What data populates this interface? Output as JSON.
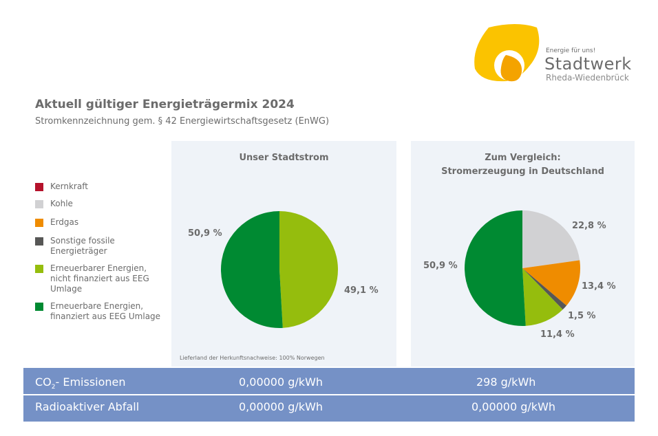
{
  "logo": {
    "tagline": "Energie für uns!",
    "name": "Stadtwerk",
    "city": "Rheda-Wiedenbrück"
  },
  "title": "Aktuell gültiger Energieträgermix 2024",
  "subtitle": "Stromkennzeichnung gem. § 42 Energiewirtschaftsgesetz (EnWG)",
  "legend": [
    {
      "label": "Kernkraft",
      "color": "#b5122b"
    },
    {
      "label": "Kohle",
      "color": "#d1d1d3"
    },
    {
      "label": "Erdgas",
      "color": "#ef8c00"
    },
    {
      "label": "Sonstige fossile Energieträger",
      "color": "#575756"
    },
    {
      "label": "Erneuerbarer Energien, nicht finanziert aus EEG Umlage",
      "color": "#95bd0d"
    },
    {
      "label": "Erneuerbare Energien, finanziert aus EEG Umlage",
      "color": "#008a32"
    }
  ],
  "chart_data": [
    {
      "type": "pie",
      "title": "Unser Stadtstrom",
      "categories": [
        "Erneuerbarer Energien, nicht finanziert aus EEG Umlage",
        "Erneuerbare Energien, finanziert aus EEG Umlage"
      ],
      "values": [
        49.1,
        50.9
      ],
      "labels": [
        "49,1 %",
        "50,9 %"
      ],
      "colors": [
        "#95bd0d",
        "#008a32"
      ],
      "note": "Lieferland der Herkunftsnachweise: 100% Norwegen"
    },
    {
      "type": "pie",
      "title": "Zum Vergleich: Stromerzeugung in Deutschland",
      "categories": [
        "Kohle",
        "Erdgas",
        "Sonstige fossile Energieträger",
        "Erneuerbarer Energien, nicht finanziert aus EEG Umlage",
        "Erneuerbare Energien, finanziert aus EEG Umlage"
      ],
      "values": [
        22.8,
        13.4,
        1.5,
        11.4,
        50.9
      ],
      "labels": [
        "22,8 %",
        "13,4 %",
        "1,5 %",
        "11,4 %",
        "50,9 %"
      ],
      "colors": [
        "#d1d1d3",
        "#ef8c00",
        "#575756",
        "#95bd0d",
        "#008a32"
      ]
    }
  ],
  "panel2_title_lines": [
    "Zum Vergleich:",
    "Stromerzeugung in Deutschland"
  ],
  "table": {
    "co2": {
      "label": "CO",
      "sub": "2",
      "suffix": "- Emissionen",
      "ours": "0,00000 g/kWh",
      "de": "298 g/kWh"
    },
    "waste": {
      "label": "Radioaktiver Abfall",
      "ours": "0,00000 g/kWh",
      "de": "0,00000 g/kWh"
    }
  }
}
